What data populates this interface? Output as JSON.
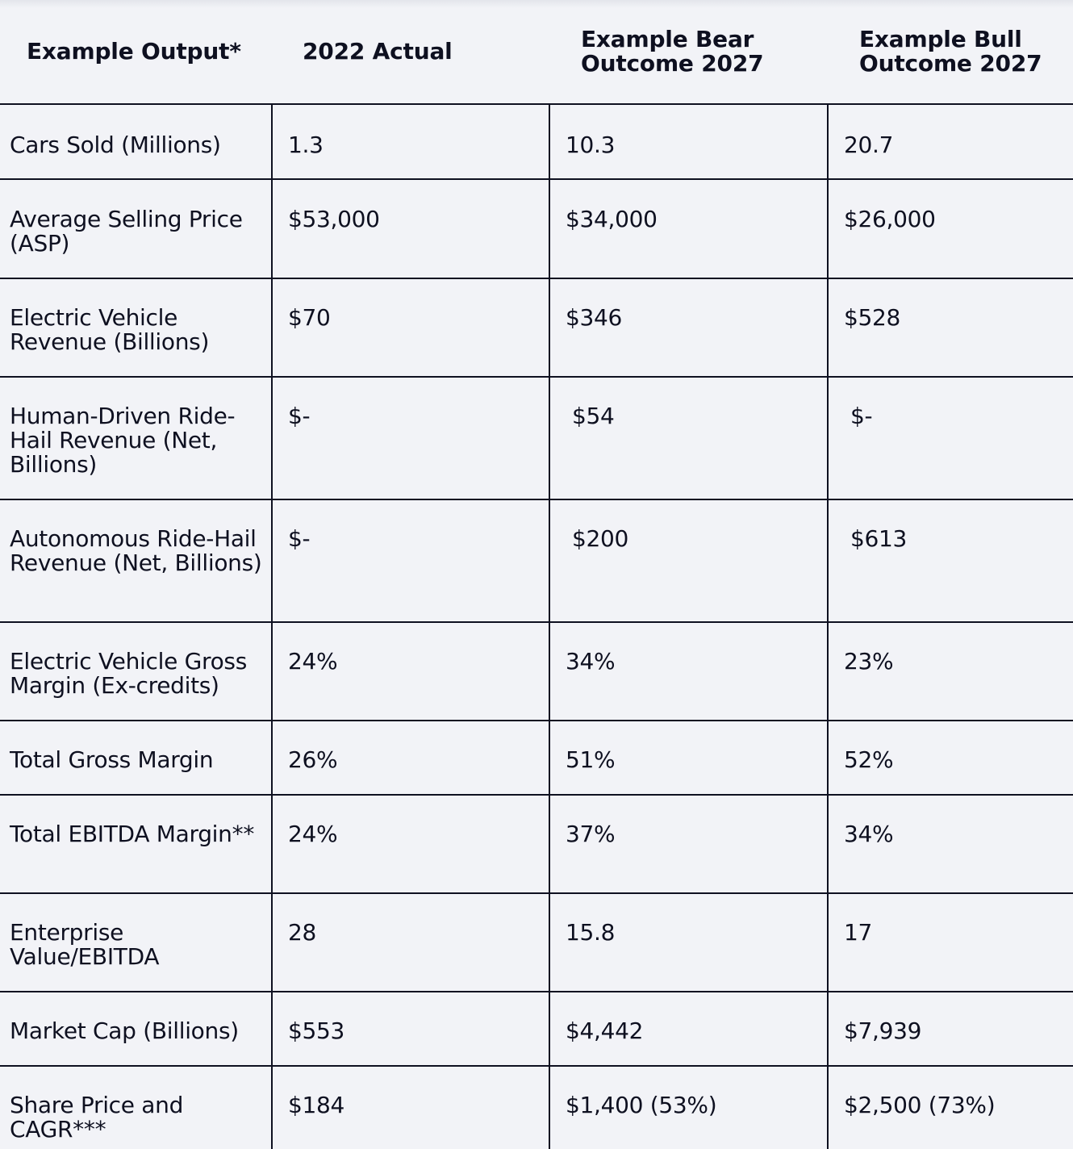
{
  "header": {
    "col0": "Example Output*",
    "col1": "2022 Actual",
    "col2": "Example Bear Outcome 2027",
    "col3": "Example Bull Outcome 2027"
  },
  "rows": [
    {
      "metric": "Cars Sold (Millions)",
      "actual_2022": "1.3",
      "bear_2027": "10.3",
      "bull_2027": "20.7"
    },
    {
      "metric": "Average Selling Price (ASP)",
      "actual_2022": "$53,000",
      "bear_2027": "$34,000",
      "bull_2027": "$26,000"
    },
    {
      "metric": "Electric Vehicle Revenue (Billions)",
      "actual_2022": "$70",
      "bear_2027": "$346",
      "bull_2027": "$528"
    },
    {
      "metric": "Human-Driven Ride-Hail Revenue (Net, Billions)",
      "actual_2022": "$-",
      "bear_2027": "$54",
      "bull_2027": "$-"
    },
    {
      "metric": "Autonomous Ride-Hail Revenue (Net, Billions)",
      "actual_2022": "$-",
      "bear_2027": "$200",
      "bull_2027": "$613"
    },
    {
      "metric": "Electric Vehicle Gross Margin (Ex-credits)",
      "actual_2022": "24%",
      "bear_2027": "34%",
      "bull_2027": "23%"
    },
    {
      "metric": "Total Gross Margin",
      "actual_2022": "26%",
      "bear_2027": "51%",
      "bull_2027": "52%"
    },
    {
      "metric": "Total EBITDA Margin**",
      "actual_2022": "24%",
      "bear_2027": "37%",
      "bull_2027": "34%"
    },
    {
      "metric": "Enterprise Value/EBITDA",
      "actual_2022": "28",
      "bear_2027": "15.8",
      "bull_2027": "17"
    },
    {
      "metric": "Market Cap (Billions)",
      "actual_2022": "$553",
      "bear_2027": "$4,442",
      "bull_2027": "$7,939"
    },
    {
      "metric": "Share Price and CAGR***",
      "actual_2022": "$184",
      "bear_2027": "$1,400 (53%)",
      "bull_2027": "$2,500 (73%)"
    }
  ]
}
